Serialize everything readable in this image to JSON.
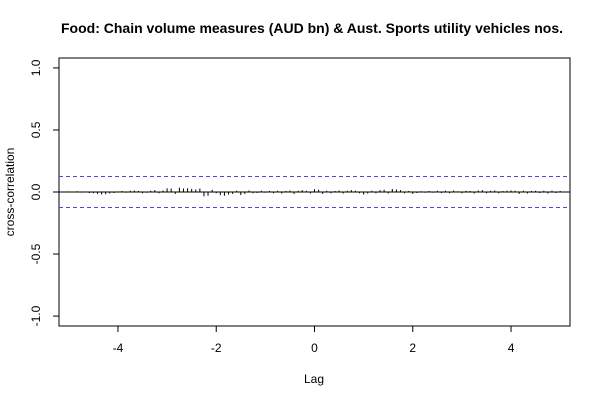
{
  "chart_data": {
    "type": "bar",
    "title": "Food: Chain volume measures (AUD bn) & Aust. Sports utility vehicles nos.",
    "xlabel": "Lag",
    "ylabel": "cross-correlation",
    "xlim": [
      -5.2,
      5.2
    ],
    "ylim": [
      -1.08,
      1.08
    ],
    "x_ticks": [
      -4,
      -2,
      0,
      2,
      4
    ],
    "x_tick_labels": [
      "-4",
      "-2",
      "0",
      "2",
      "4"
    ],
    "y_ticks": [
      -1.0,
      -0.5,
      0.0,
      0.5,
      1.0
    ],
    "y_tick_labels": [
      "-1.0",
      "-0.5",
      "0.0",
      "0.5",
      "1.0"
    ],
    "confidence_band": 0.125,
    "grid": false,
    "colors": {
      "bars": "#000000",
      "band": "#4b4bd6",
      "zero_line": "#000000"
    },
    "x": [
      -5.0,
      -4.917,
      -4.833,
      -4.75,
      -4.667,
      -4.583,
      -4.5,
      -4.417,
      -4.333,
      -4.25,
      -4.167,
      -4.083,
      -4.0,
      -3.917,
      -3.833,
      -3.75,
      -3.667,
      -3.583,
      -3.5,
      -3.417,
      -3.333,
      -3.25,
      -3.167,
      -3.083,
      -3.0,
      -2.917,
      -2.833,
      -2.75,
      -2.667,
      -2.583,
      -2.5,
      -2.417,
      -2.333,
      -2.25,
      -2.167,
      -2.083,
      -2.0,
      -1.917,
      -1.833,
      -1.75,
      -1.667,
      -1.583,
      -1.5,
      -1.417,
      -1.333,
      -1.25,
      -1.167,
      -1.083,
      -1.0,
      -0.917,
      -0.833,
      -0.75,
      -0.667,
      -0.583,
      -0.5,
      -0.417,
      -0.333,
      -0.25,
      -0.167,
      -0.083,
      0.0,
      0.083,
      0.167,
      0.25,
      0.333,
      0.417,
      0.5,
      0.583,
      0.667,
      0.75,
      0.833,
      0.917,
      1.0,
      1.083,
      1.167,
      1.25,
      1.333,
      1.417,
      1.5,
      1.583,
      1.667,
      1.75,
      1.833,
      1.917,
      2.0,
      2.083,
      2.167,
      2.25,
      2.333,
      2.417,
      2.5,
      2.583,
      2.667,
      2.75,
      2.833,
      2.917,
      3.0,
      3.083,
      3.167,
      3.25,
      3.333,
      3.417,
      3.5,
      3.583,
      3.667,
      3.75,
      3.833,
      3.917,
      4.0,
      4.083,
      4.167,
      4.25,
      4.333,
      4.417,
      4.5,
      4.583,
      4.667,
      4.75,
      4.833,
      4.917,
      5.0
    ],
    "values": [
      0.005,
      -0.004,
      0.006,
      -0.005,
      0.004,
      -0.008,
      -0.01,
      -0.015,
      -0.02,
      -0.018,
      -0.012,
      -0.008,
      0.005,
      0.008,
      -0.006,
      0.01,
      0.012,
      0.008,
      -0.01,
      -0.006,
      0.01,
      0.015,
      -0.01,
      0.012,
      0.03,
      0.028,
      -0.015,
      0.035,
      0.028,
      0.03,
      0.025,
      0.02,
      0.028,
      -0.035,
      -0.03,
      0.018,
      -0.01,
      -0.025,
      -0.03,
      -0.02,
      -0.015,
      0.01,
      -0.025,
      -0.015,
      0.012,
      -0.01,
      -0.008,
      0.01,
      -0.006,
      0.008,
      -0.01,
      0.01,
      -0.012,
      0.008,
      0.012,
      -0.015,
      0.01,
      0.015,
      0.01,
      -0.012,
      0.022,
      0.018,
      -0.015,
      0.01,
      -0.01,
      0.008,
      0.012,
      -0.012,
      0.01,
      0.015,
      0.01,
      -0.01,
      -0.02,
      -0.012,
      0.01,
      -0.01,
      0.015,
      0.018,
      -0.012,
      0.025,
      0.02,
      0.015,
      -0.01,
      0.008,
      -0.015,
      -0.008,
      0.006,
      -0.006,
      0.008,
      -0.006,
      0.01,
      -0.008,
      0.01,
      -0.01,
      0.012,
      0.006,
      -0.01,
      0.01,
      0.008,
      -0.012,
      0.012,
      0.015,
      -0.01,
      0.01,
      0.012,
      -0.01,
      0.008,
      0.01,
      0.012,
      0.01,
      -0.015,
      0.01,
      -0.012,
      0.008,
      0.01,
      -0.008,
      0.01,
      -0.012,
      0.01,
      -0.008,
      0.008
    ]
  }
}
